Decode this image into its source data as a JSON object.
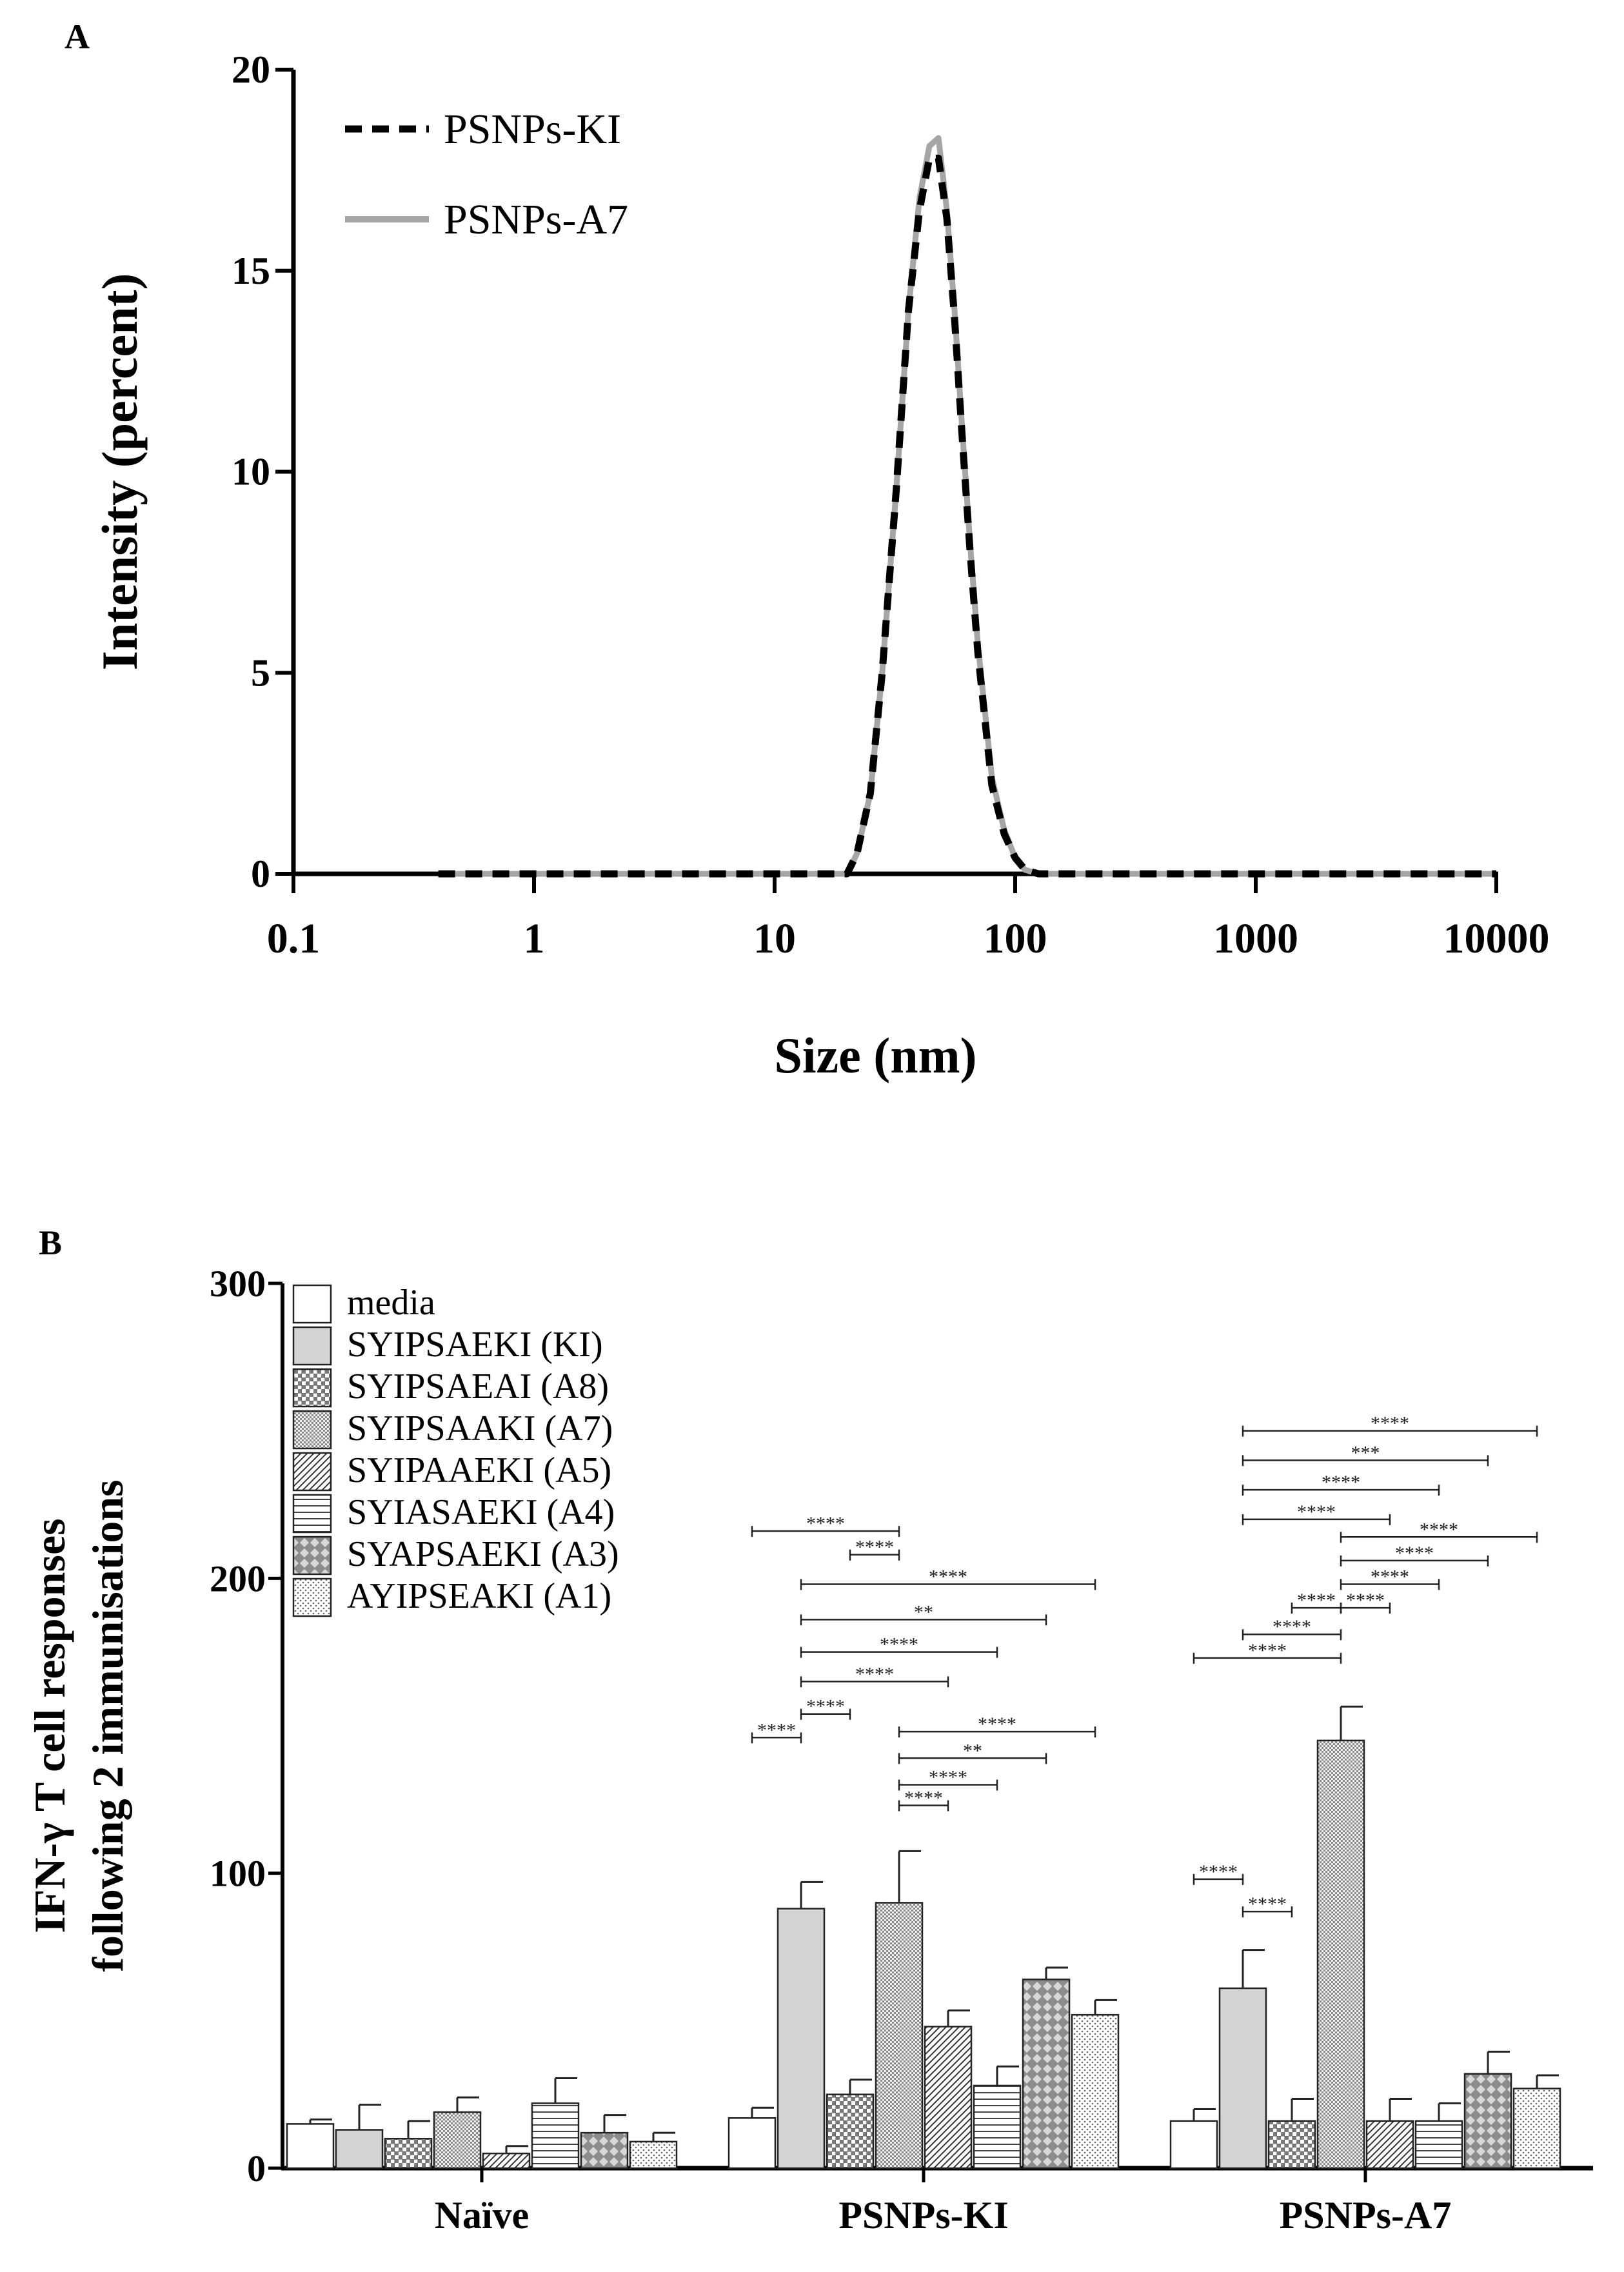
{
  "chart_data": [
    {
      "panel_label": "A",
      "type": "line",
      "title": "",
      "xlabel": "Size (nm)",
      "ylabel": "Intensity (percent)",
      "xscale": "log",
      "xlim": [
        0.1,
        10000
      ],
      "ylim": [
        0,
        20
      ],
      "x_ticks": [
        0.1,
        1,
        10,
        100,
        1000,
        10000
      ],
      "x_tick_labels": [
        "0.1",
        "1",
        "10",
        "100",
        "1000",
        "10000"
      ],
      "y_ticks": [
        0,
        5,
        10,
        15,
        20
      ],
      "y_tick_labels": [
        "0",
        "5",
        "10",
        "15",
        "20"
      ],
      "legend_position": "top-left",
      "series": [
        {
          "name": "PSNPs-KI",
          "style": "dashed",
          "color": "#000000",
          "x": [
            0.4,
            10,
            20,
            22,
            25,
            28,
            32,
            36,
            40,
            44,
            48,
            52,
            56,
            60,
            65,
            70,
            75,
            80,
            90,
            100,
            110,
            125,
            150,
            300,
            1000,
            10000
          ],
          "y": [
            0,
            0,
            0,
            0.5,
            2.0,
            5.0,
            9.5,
            14.0,
            16.5,
            17.8,
            17.8,
            16.3,
            13.8,
            11.0,
            8.0,
            5.5,
            3.8,
            2.2,
            1.0,
            0.4,
            0.1,
            0,
            0,
            0,
            0,
            0
          ]
        },
        {
          "name": "PSNPs-A7",
          "style": "solid",
          "color": "#a6a6a6",
          "x": [
            0.4,
            10,
            20,
            22,
            25,
            28,
            32,
            36,
            40,
            44,
            48,
            52,
            56,
            60,
            65,
            70,
            75,
            80,
            90,
            100,
            110,
            125,
            150,
            300,
            1000,
            10000
          ],
          "y": [
            0,
            0,
            0,
            0.5,
            2.0,
            5.0,
            9.5,
            14.0,
            16.8,
            18.1,
            18.3,
            16.5,
            14.0,
            11.2,
            8.2,
            5.7,
            4.0,
            2.4,
            1.1,
            0.4,
            0.1,
            0,
            0,
            0,
            0,
            0
          ]
        }
      ]
    },
    {
      "panel_label": "B",
      "type": "bar",
      "title": "",
      "xlabel": "",
      "ylabel_lines": [
        "IFN-γ T cell responses",
        "following 2 immunisations"
      ],
      "ylim": [
        0,
        300
      ],
      "y_ticks": [
        0,
        100,
        200,
        300
      ],
      "y_tick_labels": [
        "0",
        "100",
        "200",
        "300"
      ],
      "categories": [
        "Naïve",
        "PSNPs-KI",
        "PSNPs-A7"
      ],
      "legend_position": "top-left",
      "series": [
        {
          "name": "media",
          "pattern": "plain",
          "values": [
            15,
            17,
            16
          ],
          "errors": [
            1.5,
            3.5,
            4
          ]
        },
        {
          "name": "SYIPSAEKI (KI)",
          "pattern": "gray",
          "values": [
            13,
            88,
            61
          ],
          "errors": [
            8.5,
            9,
            13
          ]
        },
        {
          "name": "SYIPSAEAI (A8)",
          "pattern": "grid",
          "values": [
            10,
            25,
            16
          ],
          "errors": [
            6,
            5,
            7.5
          ]
        },
        {
          "name": "SYIPSAAKI (A7)",
          "pattern": "fine-check",
          "values": [
            19,
            90,
            145
          ],
          "errors": [
            5,
            17.5,
            11.5
          ]
        },
        {
          "name": "SYIPAAEKI (A5)",
          "pattern": "diagonal",
          "values": [
            5,
            48,
            16
          ],
          "errors": [
            2.5,
            5.5,
            7.5
          ]
        },
        {
          "name": "SYIASAEKI (A4)",
          "pattern": "horizontal",
          "values": [
            22,
            28,
            16
          ],
          "errors": [
            8.5,
            6.5,
            6
          ]
        },
        {
          "name": "SYAPSAEKI (A3)",
          "pattern": "coarse-check",
          "values": [
            12,
            64,
            32
          ],
          "errors": [
            6,
            4,
            7.5
          ]
        },
        {
          "name": "AYIPSEAKI (A1)",
          "pattern": "dots",
          "values": [
            9,
            52,
            27
          ],
          "errors": [
            3,
            5,
            4.5
          ]
        }
      ],
      "significance": [
        {
          "group": 1,
          "from": 0,
          "to": 1,
          "y": 146,
          "label": "****"
        },
        {
          "group": 1,
          "from": 1,
          "to": 2,
          "y": 154,
          "label": "****"
        },
        {
          "group": 1,
          "from": 1,
          "to": 4,
          "y": 165,
          "label": "****"
        },
        {
          "group": 1,
          "from": 1,
          "to": 5,
          "y": 175,
          "label": "****"
        },
        {
          "group": 1,
          "from": 1,
          "to": 6,
          "y": 186,
          "label": "**"
        },
        {
          "group": 1,
          "from": 1,
          "to": 7,
          "y": 198,
          "label": "****"
        },
        {
          "group": 1,
          "from": 2,
          "to": 3,
          "y": 208,
          "label": "****"
        },
        {
          "group": 1,
          "from": 0,
          "to": 3,
          "y": 216,
          "label": "****"
        },
        {
          "group": 1,
          "from": 3,
          "to": 4,
          "y": 123,
          "label": "****"
        },
        {
          "group": 1,
          "from": 3,
          "to": 5,
          "y": 130,
          "label": "****"
        },
        {
          "group": 1,
          "from": 3,
          "to": 6,
          "y": 139,
          "label": "**"
        },
        {
          "group": 1,
          "from": 3,
          "to": 7,
          "y": 148,
          "label": "****"
        },
        {
          "group": 2,
          "from": 0,
          "to": 1,
          "y": 98,
          "label": "****"
        },
        {
          "group": 2,
          "from": 1,
          "to": 2,
          "y": 87,
          "label": "****"
        },
        {
          "group": 2,
          "from": 0,
          "to": 3,
          "y": 173,
          "label": "****"
        },
        {
          "group": 2,
          "from": 1,
          "to": 3,
          "y": 181,
          "label": "****"
        },
        {
          "group": 2,
          "from": 2,
          "to": 3,
          "y": 190,
          "label": "****"
        },
        {
          "group": 2,
          "from": 3,
          "to": 4,
          "y": 190,
          "label": "****"
        },
        {
          "group": 2,
          "from": 3,
          "to": 5,
          "y": 198,
          "label": "****"
        },
        {
          "group": 2,
          "from": 3,
          "to": 6,
          "y": 206,
          "label": "****"
        },
        {
          "group": 2,
          "from": 3,
          "to": 7,
          "y": 214,
          "label": "****"
        },
        {
          "group": 2,
          "from": 1,
          "to": 4,
          "y": 220,
          "label": "****"
        },
        {
          "group": 2,
          "from": 1,
          "to": 5,
          "y": 230,
          "label": "****"
        },
        {
          "group": 2,
          "from": 1,
          "to": 6,
          "y": 240,
          "label": "***"
        },
        {
          "group": 2,
          "from": 1,
          "to": 7,
          "y": 250,
          "label": "****"
        }
      ]
    }
  ]
}
